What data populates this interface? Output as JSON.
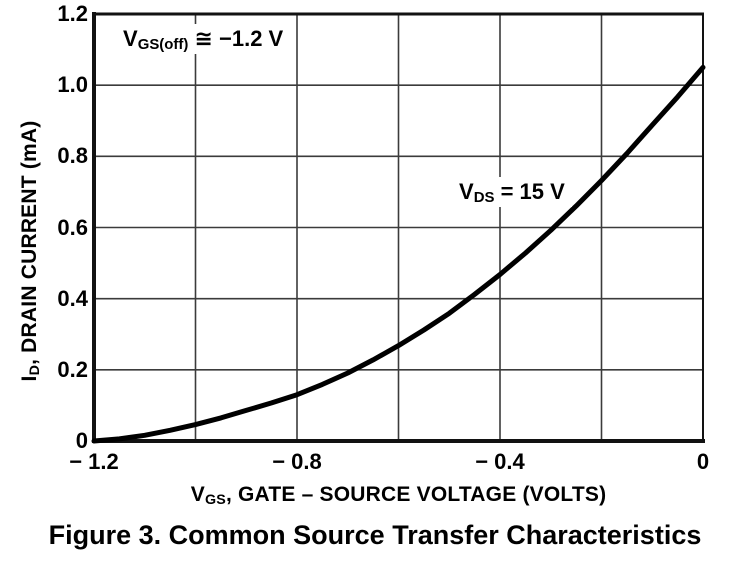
{
  "figure": {
    "caption": "Figure 3. Common Source Transfer Characteristics"
  },
  "colors": {
    "curve": "#000000",
    "grid": "#3b3b3b",
    "frame": "#121212",
    "text": "#000000",
    "background": "#ffffff"
  },
  "chart_data": {
    "type": "line",
    "title": "Figure 3. Common Source Transfer Characteristics",
    "xlabel": {
      "prefix": "V",
      "sub": "GS",
      "suffix": ", GATE – SOURCE VOLTAGE (VOLTS)"
    },
    "ylabel": {
      "prefix": "I",
      "sub": "D",
      "suffix": ", DRAIN CURRENT (mA)"
    },
    "xlim": [
      -1.2,
      0
    ],
    "ylim": [
      0,
      1.2
    ],
    "grid": true,
    "legend": "none",
    "x_ticks": [
      {
        "label": "− 1.2",
        "value": -1.2
      },
      {
        "label": "− 0.8",
        "value": -0.8
      },
      {
        "label": "− 0.4",
        "value": -0.4
      },
      {
        "label": "0",
        "value": 0
      }
    ],
    "y_ticks": [
      {
        "label": "1.2",
        "value": 1.2
      },
      {
        "label": "1.0",
        "value": 1.0
      },
      {
        "label": "0.8",
        "value": 0.8
      },
      {
        "label": "0.6",
        "value": 0.6
      },
      {
        "label": "0.4",
        "value": 0.4
      },
      {
        "label": "0.2",
        "value": 0.2
      },
      {
        "label": "0",
        "value": 0
      }
    ],
    "x_gridlines": [
      -1.0,
      -0.8,
      -0.6,
      -0.4,
      -0.2
    ],
    "y_gridlines": [
      0.2,
      0.4,
      0.6,
      0.8,
      1.0
    ],
    "annotations": [
      {
        "prefix": "V",
        "sub": "GS(off)",
        "suffix": " ≅ −1.2 V"
      },
      {
        "prefix": "V",
        "sub": "DS",
        "suffix": " = 15 V"
      }
    ],
    "series": [
      {
        "name": "ID vs VGS at VDS = 15 V",
        "condition": "VDS = 15 V",
        "points": [
          [
            -1.2,
            0.0
          ],
          [
            -1.15,
            0.006
          ],
          [
            -1.1,
            0.016
          ],
          [
            -1.05,
            0.03
          ],
          [
            -1.0,
            0.046
          ],
          [
            -0.95,
            0.065
          ],
          [
            -0.9,
            0.086
          ],
          [
            -0.85,
            0.107
          ],
          [
            -0.8,
            0.13
          ],
          [
            -0.75,
            0.159
          ],
          [
            -0.7,
            0.191
          ],
          [
            -0.65,
            0.228
          ],
          [
            -0.6,
            0.268
          ],
          [
            -0.55,
            0.312
          ],
          [
            -0.5,
            0.359
          ],
          [
            -0.45,
            0.412
          ],
          [
            -0.4,
            0.468
          ],
          [
            -0.35,
            0.528
          ],
          [
            -0.3,
            0.592
          ],
          [
            -0.25,
            0.66
          ],
          [
            -0.2,
            0.732
          ],
          [
            -0.15,
            0.808
          ],
          [
            -0.1,
            0.888
          ],
          [
            -0.05,
            0.967
          ],
          [
            0,
            1.05
          ]
        ]
      }
    ]
  }
}
